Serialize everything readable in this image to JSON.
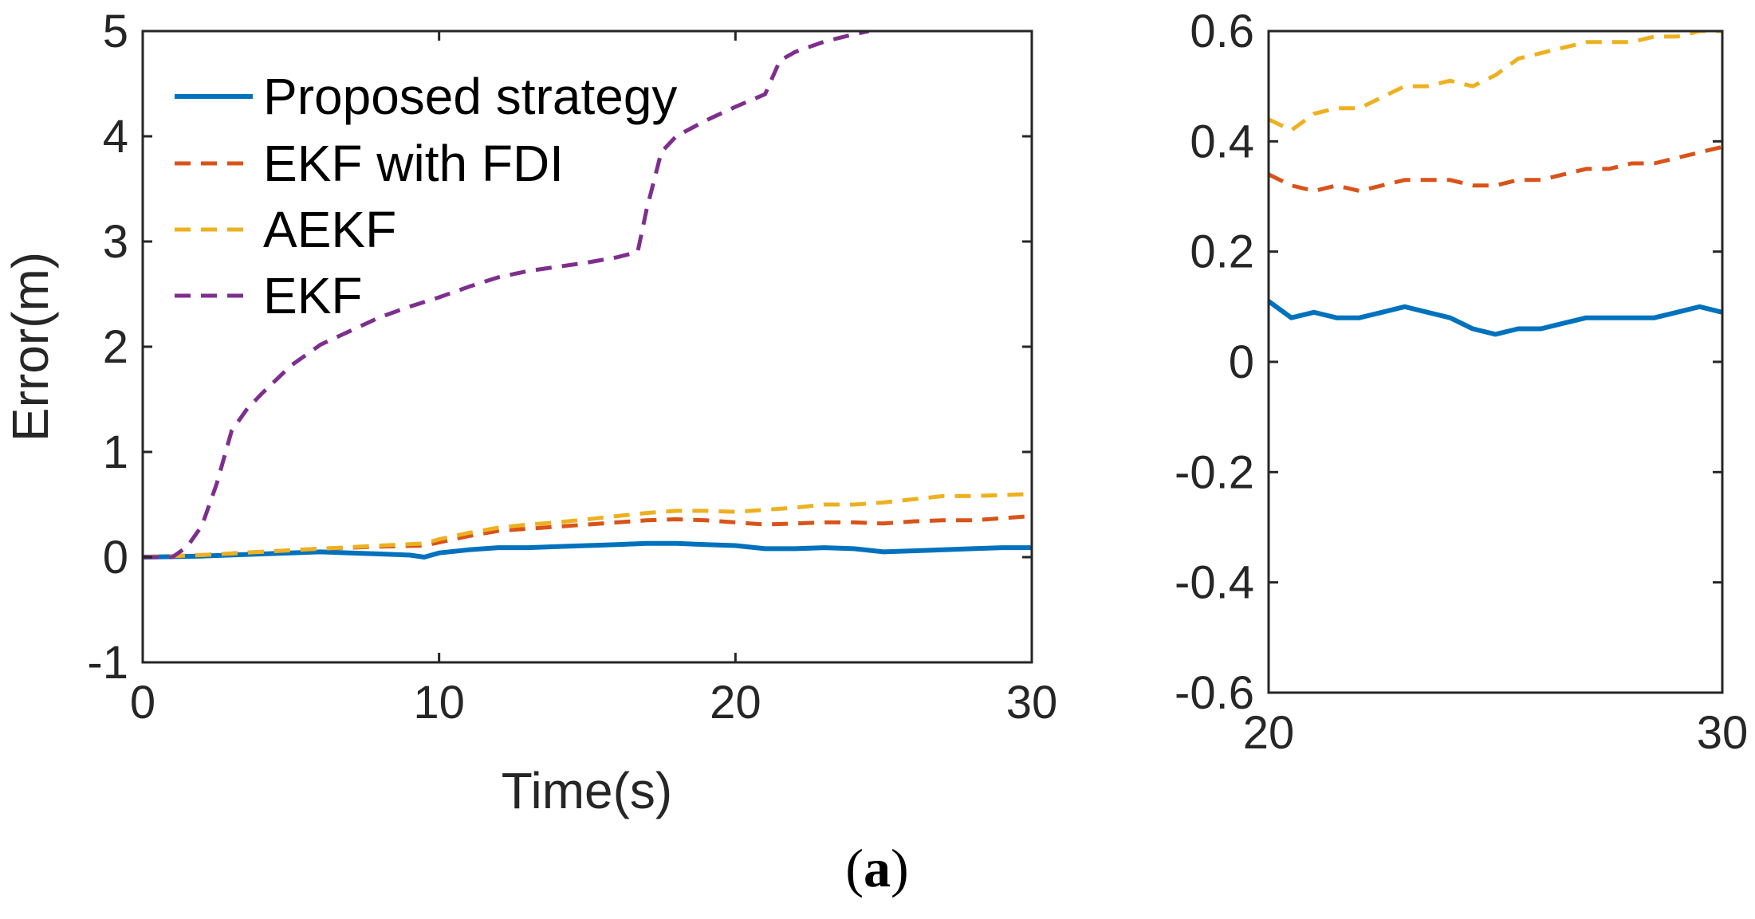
{
  "colors": {
    "proposed": "#0072BD",
    "ekf_fdi": "#D95319",
    "aekf": "#EDB120",
    "ekf": "#7E2F8E",
    "axis": "#262626"
  },
  "caption": {
    "open": "(",
    "letter": "a",
    "close": ")"
  },
  "chart_data": [
    {
      "type": "line",
      "panel": "main",
      "title": "",
      "xlabel": "Time(s)",
      "ylabel": "Error(m)",
      "xlim": [
        0,
        30
      ],
      "ylim": [
        -1,
        5
      ],
      "xticks": [
        "0",
        "10",
        "20",
        "30"
      ],
      "xtick_values": [
        0,
        10,
        20,
        30
      ],
      "yticks": [
        "-1",
        "0",
        "1",
        "2",
        "3",
        "4",
        "5"
      ],
      "ytick_values": [
        -1,
        0,
        1,
        2,
        3,
        4,
        5
      ],
      "grid": false,
      "legend_position": "top-left",
      "series": [
        {
          "name": "Proposed strategy",
          "style": "solid",
          "color": "#0072BD",
          "x": [
            0,
            2,
            4,
            6,
            7,
            8,
            9,
            9.5,
            10,
            11,
            12,
            13,
            14,
            15,
            16,
            17,
            18,
            19,
            20,
            21,
            22,
            23,
            24,
            25,
            26,
            27,
            28,
            29,
            30
          ],
          "y": [
            0,
            0.01,
            0.03,
            0.05,
            0.04,
            0.03,
            0.02,
            0.0,
            0.04,
            0.07,
            0.09,
            0.09,
            0.1,
            0.11,
            0.12,
            0.13,
            0.13,
            0.12,
            0.11,
            0.08,
            0.08,
            0.09,
            0.08,
            0.05,
            0.06,
            0.07,
            0.08,
            0.09,
            0.09
          ]
        },
        {
          "name": "EKF with FDI",
          "style": "dashed",
          "color": "#D95319",
          "x": [
            0,
            2,
            4,
            6,
            8,
            9.5,
            10,
            11,
            12,
            13,
            14,
            15,
            16,
            17,
            18,
            19,
            20,
            21,
            22,
            23,
            24,
            25,
            26,
            27,
            28,
            29,
            30
          ],
          "y": [
            0,
            0.02,
            0.05,
            0.08,
            0.1,
            0.11,
            0.14,
            0.2,
            0.25,
            0.27,
            0.29,
            0.31,
            0.33,
            0.35,
            0.36,
            0.35,
            0.33,
            0.31,
            0.32,
            0.33,
            0.33,
            0.32,
            0.34,
            0.35,
            0.35,
            0.37,
            0.39
          ]
        },
        {
          "name": "AEKF",
          "style": "dashed",
          "color": "#EDB120",
          "x": [
            0,
            2,
            4,
            6,
            8,
            9.5,
            10,
            11,
            12,
            13,
            14,
            15,
            16,
            17,
            18,
            19,
            20,
            21,
            22,
            23,
            24,
            25,
            26,
            27,
            28,
            29,
            30
          ],
          "y": [
            0,
            0.02,
            0.05,
            0.08,
            0.11,
            0.13,
            0.17,
            0.23,
            0.28,
            0.31,
            0.33,
            0.36,
            0.39,
            0.42,
            0.44,
            0.44,
            0.43,
            0.45,
            0.47,
            0.5,
            0.5,
            0.52,
            0.55,
            0.58,
            0.58,
            0.59,
            0.6
          ]
        },
        {
          "name": "EKF",
          "style": "dashed",
          "color": "#7E2F8E",
          "x": [
            0,
            1,
            1.5,
            2,
            2.5,
            3,
            3.5,
            4,
            5,
            6,
            7,
            8,
            9,
            10,
            11,
            12,
            13,
            14,
            15,
            16,
            16.7,
            17,
            17.5,
            18,
            19,
            20,
            21,
            21.5,
            22,
            23,
            24,
            24.5
          ],
          "y": [
            0,
            0,
            0.1,
            0.3,
            0.7,
            1.2,
            1.4,
            1.55,
            1.82,
            2.02,
            2.15,
            2.28,
            2.38,
            2.47,
            2.57,
            2.66,
            2.72,
            2.76,
            2.8,
            2.85,
            2.9,
            3.3,
            3.85,
            4.0,
            4.15,
            4.28,
            4.4,
            4.72,
            4.8,
            4.9,
            4.97,
            5.0
          ]
        }
      ]
    },
    {
      "type": "line",
      "panel": "zoom",
      "title": "",
      "xlabel": "",
      "ylabel": "",
      "xlim": [
        20,
        30
      ],
      "ylim": [
        -0.6,
        0.6
      ],
      "xticks": [
        "20",
        "30"
      ],
      "xtick_values": [
        20,
        30
      ],
      "yticks": [
        "-0.6",
        "-0.4",
        "-0.2",
        "0",
        "0.2",
        "0.4",
        "0.6"
      ],
      "ytick_values": [
        -0.6,
        -0.4,
        -0.2,
        0,
        0.2,
        0.4,
        0.6
      ],
      "grid": false,
      "series": [
        {
          "name": "Proposed strategy",
          "style": "solid",
          "color": "#0072BD",
          "x": [
            20,
            20.5,
            21,
            21.5,
            22,
            22.5,
            23,
            23.5,
            24,
            24.5,
            25,
            25.5,
            26,
            26.5,
            27,
            27.5,
            28,
            28.5,
            29,
            29.5,
            30
          ],
          "y": [
            0.11,
            0.08,
            0.09,
            0.08,
            0.08,
            0.09,
            0.1,
            0.09,
            0.08,
            0.06,
            0.05,
            0.06,
            0.06,
            0.07,
            0.08,
            0.08,
            0.08,
            0.08,
            0.09,
            0.1,
            0.09
          ]
        },
        {
          "name": "EKF with FDI",
          "style": "dashed",
          "color": "#D95319",
          "x": [
            20,
            20.5,
            21,
            21.5,
            22,
            22.5,
            23,
            23.5,
            24,
            24.5,
            25,
            25.5,
            26,
            26.5,
            27,
            27.5,
            28,
            28.5,
            29,
            29.5,
            30
          ],
          "y": [
            0.34,
            0.32,
            0.31,
            0.32,
            0.31,
            0.32,
            0.33,
            0.33,
            0.33,
            0.32,
            0.32,
            0.33,
            0.33,
            0.34,
            0.35,
            0.35,
            0.36,
            0.36,
            0.37,
            0.38,
            0.39
          ]
        },
        {
          "name": "AEKF",
          "style": "dashed",
          "color": "#EDB120",
          "x": [
            20,
            20.5,
            21,
            21.5,
            22,
            22.5,
            23,
            23.5,
            24,
            24.5,
            25,
            25.5,
            26,
            26.5,
            27,
            27.5,
            28,
            28.5,
            29,
            29.5,
            30
          ],
          "y": [
            0.44,
            0.42,
            0.45,
            0.46,
            0.46,
            0.48,
            0.5,
            0.5,
            0.51,
            0.5,
            0.52,
            0.55,
            0.56,
            0.57,
            0.58,
            0.58,
            0.58,
            0.59,
            0.59,
            0.6,
            0.6
          ]
        }
      ]
    }
  ]
}
